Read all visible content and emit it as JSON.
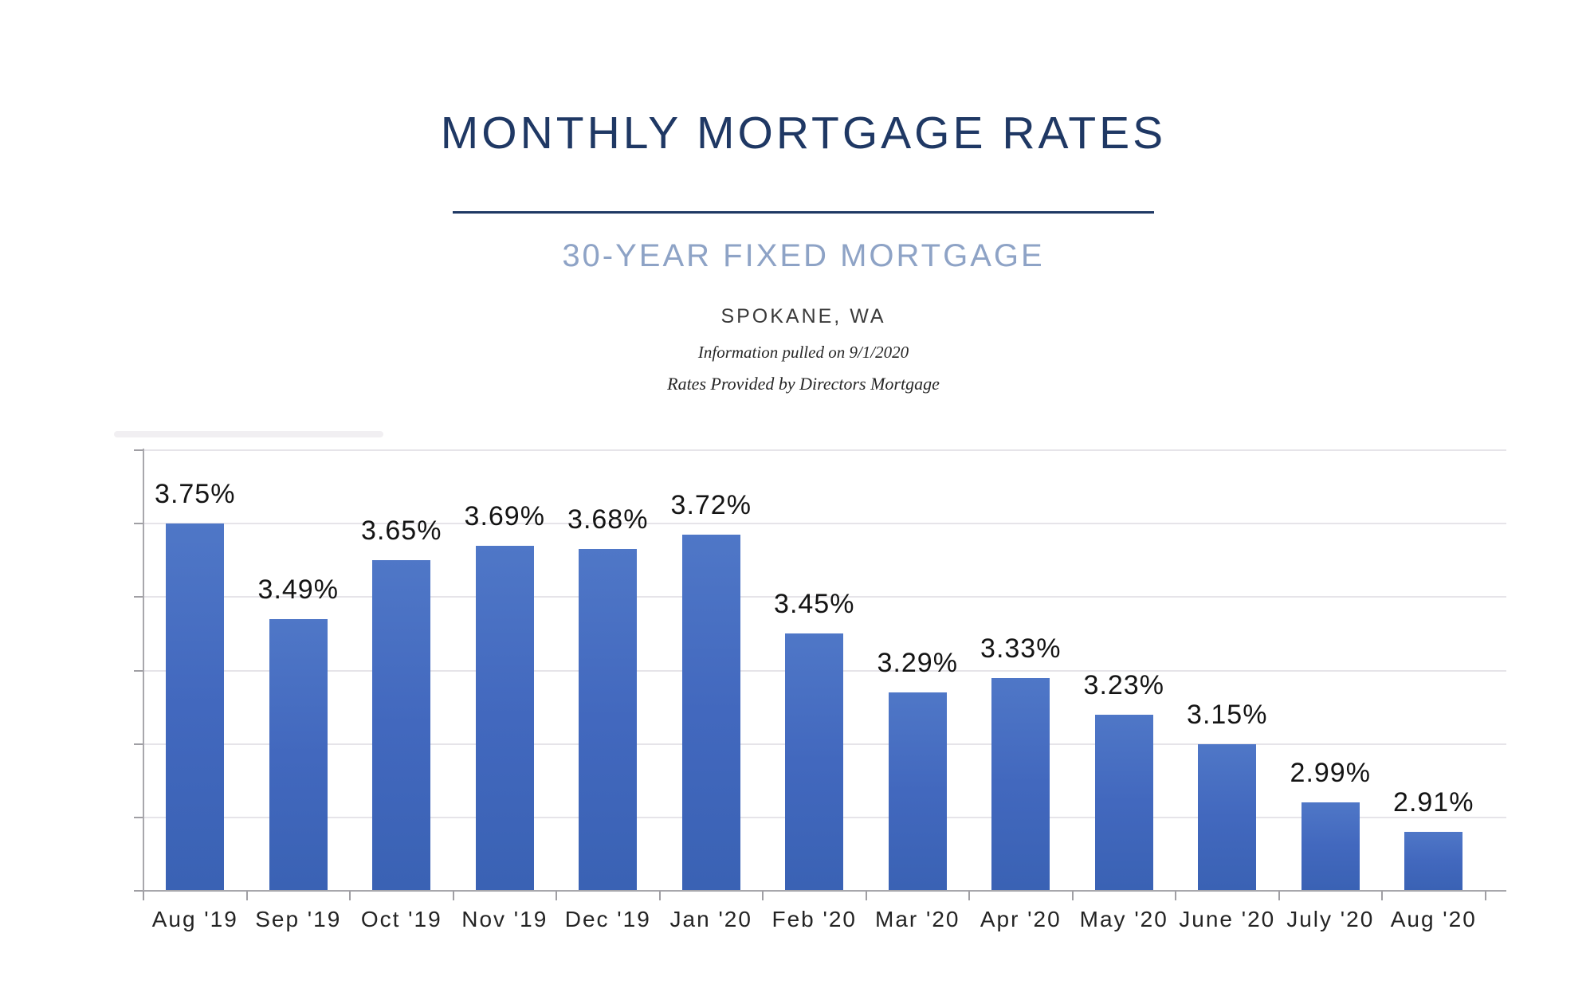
{
  "header": {
    "title": "MONTHLY MORTGAGE RATES",
    "subtitle": "30-YEAR FIXED MORTGAGE",
    "location": "SPOKANE, WA",
    "info_line1": "Information pulled on 9/1/2020",
    "info_line2": "Rates Provided by Directors Mortgage"
  },
  "colors": {
    "title_navy": "#1f3864",
    "subtitle_blue": "#8ea3c6",
    "bar_gradient_top": "#4f77c7",
    "bar_gradient_bottom": "#3a62b4",
    "gridline_gray": "#e6e4e9",
    "axis_gray": "#a8a7ac",
    "label_black": "#141414"
  },
  "chart_data": {
    "type": "bar",
    "title": "MONTHLY MORTGAGE RATES",
    "subtitle": "30-YEAR FIXED MORTGAGE",
    "xlabel": "",
    "ylabel": "",
    "categories": [
      "Aug '19",
      "Sep '19",
      "Oct '19",
      "Nov '19",
      "Dec '19",
      "Jan '20",
      "Feb '20",
      "Mar '20",
      "Apr '20",
      "May '20",
      "June '20",
      "July '20",
      "Aug '20"
    ],
    "values": [
      3.75,
      3.49,
      3.65,
      3.69,
      3.68,
      3.72,
      3.45,
      3.29,
      3.33,
      3.23,
      3.15,
      2.99,
      2.91
    ],
    "value_labels": [
      "3.75%",
      "3.49%",
      "3.65%",
      "3.69%",
      "3.68%",
      "3.72%",
      "3.45%",
      "3.29%",
      "3.33%",
      "3.23%",
      "3.15%",
      "2.99%",
      "2.91%"
    ],
    "ylim": [
      2.75,
      3.95
    ],
    "gridline_step": 0.2,
    "grid": true,
    "legend": false,
    "y_axis_labels_visible": false
  }
}
